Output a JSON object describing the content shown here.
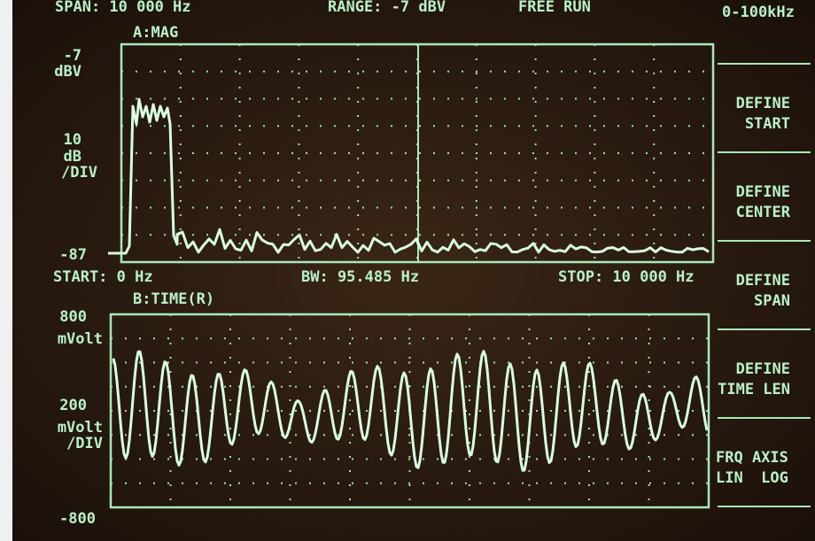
{
  "header": {
    "span": "SPAN: 10 000 Hz",
    "range": "RANGE: -7 dBV",
    "mode": "FREE RUN",
    "band": "0-100kHz"
  },
  "trace_a": {
    "title": "A:MAG",
    "top": "-7",
    "top_unit": "dBV",
    "scale": "10",
    "scale_unit": "dB",
    "scale_div": "/DIV",
    "bottom": "-87",
    "start": "START: 0 Hz",
    "bw": "BW: 95.485 Hz",
    "stop": "STOP: 10 000 Hz"
  },
  "trace_b": {
    "title": "B:TIME(R)",
    "top": "800",
    "top_unit": "mVolt",
    "scale": "200",
    "scale_unit": "mVolt",
    "scale_div": "/DIV",
    "bottom": "-800"
  },
  "softkeys": [
    {
      "line1": "DEFINE",
      "line2": "START"
    },
    {
      "line1": "DEFINE",
      "line2": "CENTER"
    },
    {
      "line1": "DEFINE",
      "line2": "SPAN"
    },
    {
      "line1": "DEFINE",
      "line2": "TIME LEN"
    },
    {
      "line1": "FRQ AXIS",
      "line2": "LIN  LOG"
    }
  ]
}
